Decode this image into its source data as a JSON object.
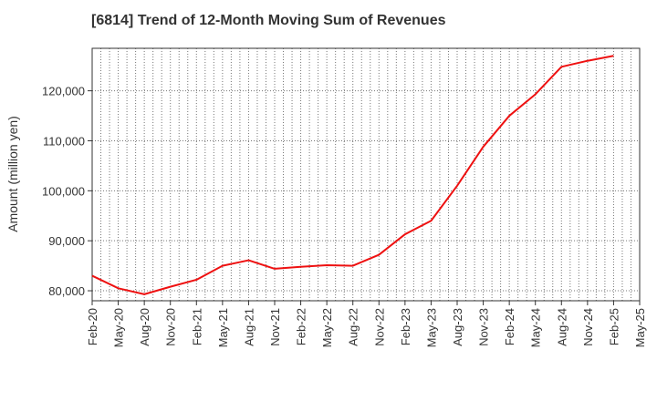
{
  "chart_data": {
    "type": "line",
    "title": "[6814]  Trend of 12-Month Moving Sum of Revenues",
    "ylabel": "Amount (million yen)",
    "xlabel": "",
    "x_ticks": [
      "Feb-20",
      "May-20",
      "Aug-20",
      "Nov-20",
      "Feb-21",
      "May-21",
      "Aug-21",
      "Nov-21",
      "Feb-22",
      "May-22",
      "Aug-22",
      "Nov-22",
      "Feb-23",
      "May-23",
      "Aug-23",
      "Nov-23",
      "Feb-24",
      "May-24",
      "Aug-24",
      "Nov-24",
      "Feb-25",
      "May-25"
    ],
    "y_ticks": [
      "80,000",
      "90,000",
      "100,000",
      "110,000",
      "120,000"
    ],
    "y_tick_values": [
      80000,
      90000,
      100000,
      110000,
      120000
    ],
    "ylim": [
      78000,
      128500
    ],
    "grid": true,
    "series": [
      {
        "color": "#ee1111",
        "points": [
          {
            "x": "Feb-20",
            "y": 83000
          },
          {
            "x": "May-20",
            "y": 80500
          },
          {
            "x": "Aug-20",
            "y": 79300
          },
          {
            "x": "Nov-20",
            "y": 80800
          },
          {
            "x": "Feb-21",
            "y": 82200
          },
          {
            "x": "May-21",
            "y": 85000
          },
          {
            "x": "Aug-21",
            "y": 86100
          },
          {
            "x": "Nov-21",
            "y": 84400
          },
          {
            "x": "Feb-22",
            "y": 84800
          },
          {
            "x": "May-22",
            "y": 85100
          },
          {
            "x": "Aug-22",
            "y": 85000
          },
          {
            "x": "Nov-22",
            "y": 87200
          },
          {
            "x": "Feb-23",
            "y": 91300
          },
          {
            "x": "May-23",
            "y": 94000
          },
          {
            "x": "Aug-23",
            "y": 101000
          },
          {
            "x": "Nov-23",
            "y": 108800
          },
          {
            "x": "Feb-24",
            "y": 115000
          },
          {
            "x": "May-24",
            "y": 119300
          },
          {
            "x": "Aug-24",
            "y": 124800
          },
          {
            "x": "Nov-24",
            "y": 126000
          },
          {
            "x": "Feb-25",
            "y": 127000
          }
        ]
      }
    ]
  }
}
